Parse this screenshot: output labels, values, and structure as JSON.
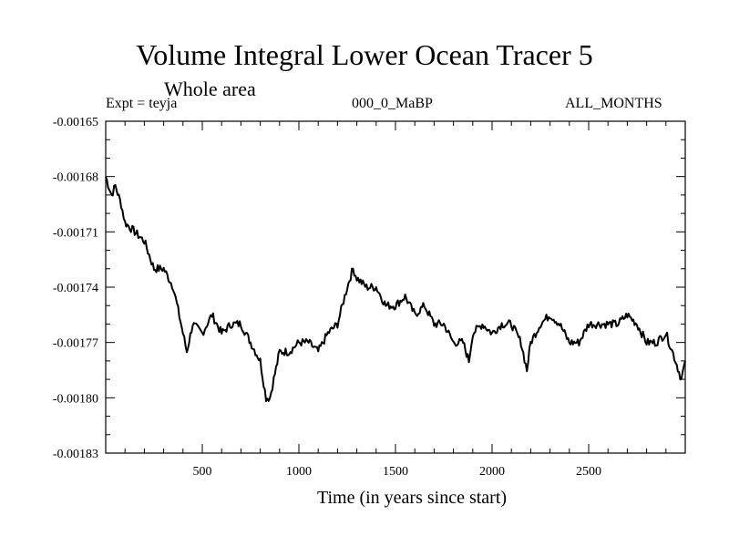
{
  "chart_data": {
    "type": "line",
    "title": "Volume Integral Lower Ocean Tracer 5",
    "subtitle": "Whole area",
    "experiment": "Expt = teyja",
    "period": "000_0_MaBP",
    "months": "ALL_MONTHS",
    "xlabel": "Time (in years since start)",
    "ylabel": "",
    "xlim": [
      0,
      3000
    ],
    "ylim": [
      -0.00183,
      -0.00165
    ],
    "xticks": [
      500,
      1000,
      1500,
      2000,
      2500
    ],
    "xtick_labels": [
      "500",
      "1000",
      "1500",
      "2000",
      "2500"
    ],
    "yticks": [
      -0.00165,
      -0.00168,
      -0.00171,
      -0.00174,
      -0.00177,
      -0.0018,
      -0.00183
    ],
    "ytick_labels": [
      "-0.00165",
      "-0.00168",
      "-0.00171",
      "-0.00174",
      "-0.00177",
      "-0.00180",
      "-0.00183"
    ],
    "grid": false,
    "series": [
      {
        "name": "Lower Ocean Tracer 5",
        "color": "#000000",
        "x": [
          0,
          30,
          50,
          80,
          100,
          150,
          200,
          250,
          300,
          350,
          400,
          420,
          450,
          500,
          550,
          600,
          650,
          700,
          750,
          800,
          830,
          850,
          870,
          900,
          950,
          1000,
          1050,
          1100,
          1150,
          1200,
          1250,
          1280,
          1300,
          1350,
          1400,
          1450,
          1500,
          1550,
          1600,
          1650,
          1700,
          1750,
          1800,
          1850,
          1880,
          1900,
          1950,
          2000,
          2050,
          2100,
          2150,
          2180,
          2200,
          2250,
          2300,
          2350,
          2400,
          2450,
          2500,
          2550,
          2600,
          2650,
          2700,
          2750,
          2800,
          2850,
          2900,
          2950,
          2980,
          3000
        ],
        "y": [
          -0.00168,
          -0.00169,
          -0.001685,
          -0.001695,
          -0.001705,
          -0.00171,
          -0.001715,
          -0.00173,
          -0.00173,
          -0.00174,
          -0.001765,
          -0.001775,
          -0.00176,
          -0.001765,
          -0.001755,
          -0.001765,
          -0.00176,
          -0.00176,
          -0.00177,
          -0.00178,
          -0.0018,
          -0.0018,
          -0.00179,
          -0.001775,
          -0.001775,
          -0.00177,
          -0.00177,
          -0.001775,
          -0.001765,
          -0.00176,
          -0.00174,
          -0.00173,
          -0.001735,
          -0.00174,
          -0.00174,
          -0.00175,
          -0.00175,
          -0.001745,
          -0.001755,
          -0.00175,
          -0.00176,
          -0.00176,
          -0.00177,
          -0.00177,
          -0.00178,
          -0.001765,
          -0.00176,
          -0.001765,
          -0.00176,
          -0.00176,
          -0.00177,
          -0.001785,
          -0.00177,
          -0.00176,
          -0.001755,
          -0.00176,
          -0.00177,
          -0.00177,
          -0.00176,
          -0.00176,
          -0.00176,
          -0.00176,
          -0.001755,
          -0.00176,
          -0.00177,
          -0.00177,
          -0.001765,
          -0.00178,
          -0.00179,
          -0.00178
        ]
      }
    ]
  }
}
